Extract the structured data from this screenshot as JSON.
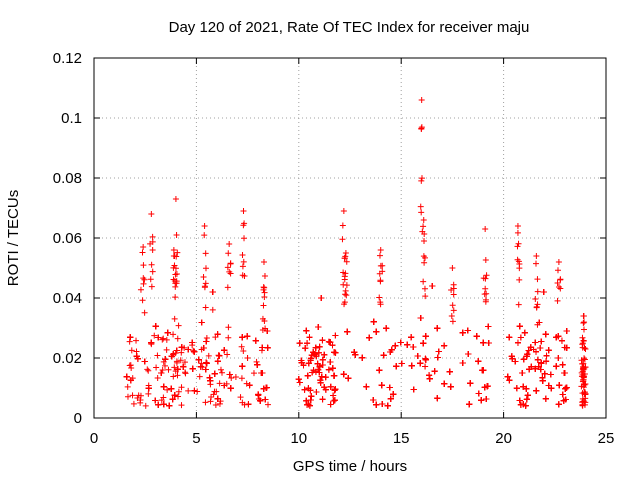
{
  "chart_data": {
    "type": "scatter",
    "title": "Day 120 of 2021, Rate Of TEC Index for receiver maju",
    "xlabel": "GPS time / hours",
    "ylabel": "ROTI / TECUs",
    "xlim": [
      0,
      25
    ],
    "ylim": [
      0,
      0.12
    ],
    "x_ticks": [
      0,
      5,
      10,
      15,
      20,
      25
    ],
    "x_tick_labels": [
      "0",
      "5",
      "10",
      "15",
      "20",
      "25"
    ],
    "y_ticks": [
      0,
      0.02,
      0.04,
      0.06,
      0.08,
      0.1,
      0.12
    ],
    "y_tick_labels": [
      "0",
      "0.02",
      "0.04",
      "0.06",
      "0.08",
      "0.1",
      "0.12"
    ],
    "grid": true,
    "marker": "+",
    "colors": {
      "points": "#ff0000",
      "grid": "#a0a0a0",
      "axes": "#000000"
    },
    "series": [
      {
        "name": "ROTI",
        "data_segments": [
          {
            "x_start": 1.6,
            "x_end": 8.5,
            "typical": [
              0.004,
              0.028
            ]
          },
          {
            "x_start": 10.0,
            "x_end": 11.8,
            "typical": [
              0.004,
              0.026
            ]
          },
          {
            "x_start": 12.2,
            "x_end": 19.3,
            "typical": [
              0.004,
              0.03
            ]
          },
          {
            "x_start": 20.2,
            "x_end": 23.1,
            "typical": [
              0.004,
              0.028
            ]
          },
          {
            "x_start": 23.8,
            "x_end": 24.0,
            "typical": [
              0.004,
              0.02
            ]
          }
        ],
        "peaks": [
          {
            "x": 2.4,
            "y": 0.057
          },
          {
            "x": 2.8,
            "y": 0.068
          },
          {
            "x": 4.0,
            "y": 0.073
          },
          {
            "x": 3.9,
            "y": 0.056
          },
          {
            "x": 5.4,
            "y": 0.064
          },
          {
            "x": 6.6,
            "y": 0.058
          },
          {
            "x": 7.3,
            "y": 0.069
          },
          {
            "x": 8.3,
            "y": 0.052
          },
          {
            "x": 12.2,
            "y": 0.069
          },
          {
            "x": 12.3,
            "y": 0.055
          },
          {
            "x": 14.0,
            "y": 0.056
          },
          {
            "x": 16.0,
            "y": 0.106
          },
          {
            "x": 16.1,
            "y": 0.066
          },
          {
            "x": 17.5,
            "y": 0.05
          },
          {
            "x": 19.1,
            "y": 0.063
          },
          {
            "x": 20.7,
            "y": 0.064
          },
          {
            "x": 21.6,
            "y": 0.054
          },
          {
            "x": 22.7,
            "y": 0.052
          },
          {
            "x": 23.9,
            "y": 0.034
          }
        ]
      }
    ]
  }
}
